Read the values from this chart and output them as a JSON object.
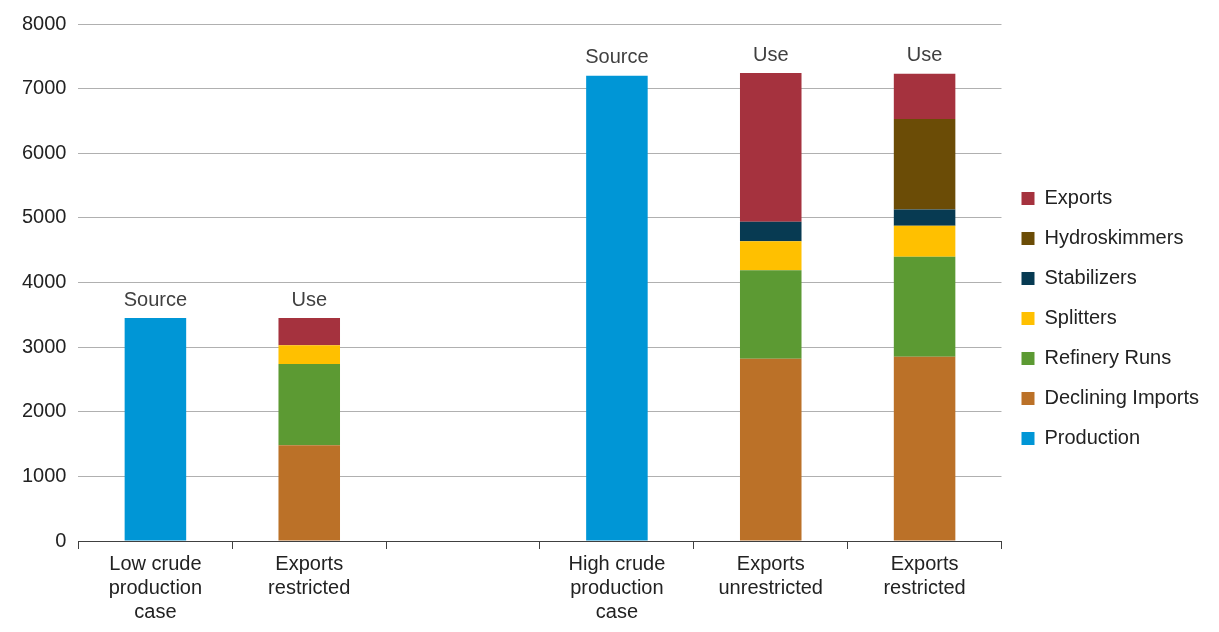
{
  "chart_data": {
    "type": "bar",
    "stacked": true,
    "categories": [
      "Low crude production case",
      "Exports restricted",
      null,
      "High crude production case",
      "Exports unrestricted",
      "Exports restricted"
    ],
    "series": [
      {
        "name": "Production",
        "color": "#0096d6",
        "values": [
          3450,
          null,
          null,
          7200,
          null,
          null
        ]
      },
      {
        "name": "Declining Imports",
        "color": "#bb7128",
        "values": [
          null,
          1480,
          null,
          null,
          2820,
          2850
        ]
      },
      {
        "name": "Refinery Runs",
        "color": "#5c9a33",
        "values": [
          null,
          1260,
          null,
          null,
          1370,
          1550
        ]
      },
      {
        "name": "Splitters",
        "color": "#ffc000",
        "values": [
          null,
          290,
          null,
          null,
          450,
          480
        ]
      },
      {
        "name": "Stabilizers",
        "color": "#073a52",
        "values": [
          null,
          null,
          null,
          null,
          300,
          250
        ]
      },
      {
        "name": "Hydroskimmers",
        "color": "#6b4c06",
        "values": [
          null,
          null,
          null,
          null,
          null,
          1400
        ]
      },
      {
        "name": "Exports",
        "color": "#a5323e",
        "values": [
          null,
          420,
          null,
          null,
          2300,
          700
        ]
      }
    ],
    "ylim": [
      0,
      8000
    ],
    "yticks": [
      0,
      1000,
      2000,
      3000,
      4000,
      5000,
      6000,
      7000,
      8000
    ],
    "grid": "y",
    "legend": "right",
    "annotations": [
      "Source",
      "Use",
      "Source",
      "Use",
      "Use"
    ]
  }
}
